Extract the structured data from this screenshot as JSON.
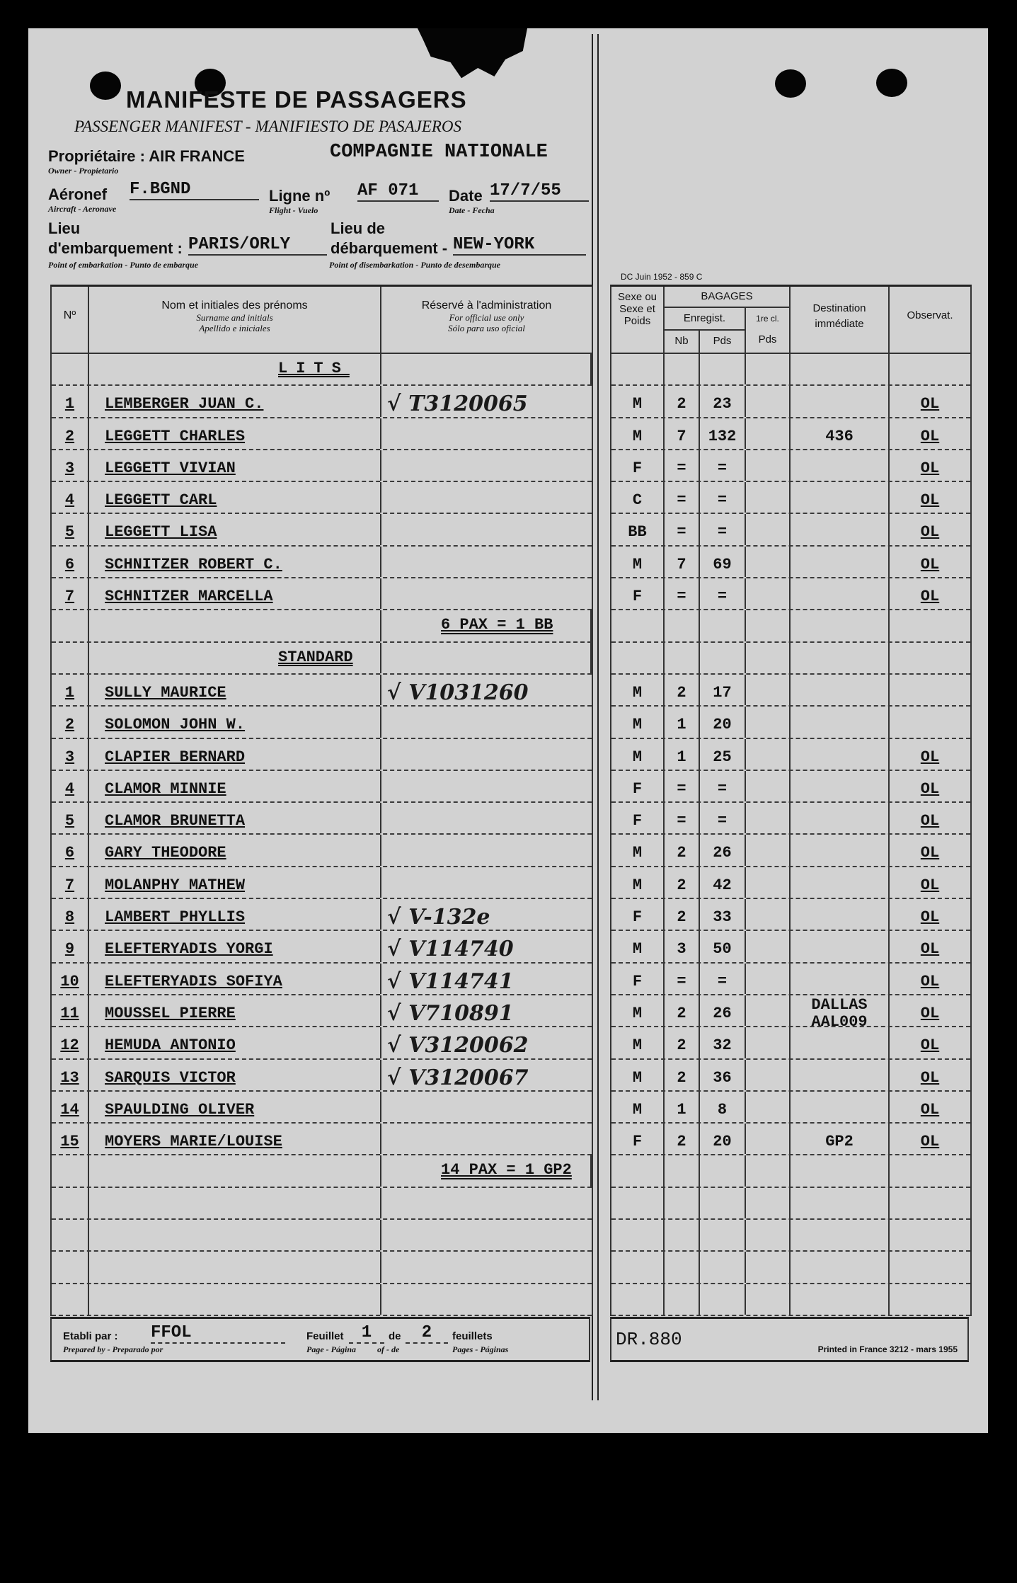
{
  "header": {
    "title": "MANIFESTE DE PASSAGERS",
    "subtitle": "PASSENGER MANIFEST - MANIFIESTO DE PASAJEROS",
    "owner_label": "Propriétaire : AIR FRANCE",
    "owner_sub": "Owner - Propietario",
    "owner_value": "COMPAGNIE NATIONALE",
    "aircraft_label": "Aéronef",
    "aircraft_sub": "Aircraft - Aeronave",
    "aircraft_value": "F.BGND",
    "flight_label": "Ligne nº",
    "flight_sub": "Flight - Vuelo",
    "flight_value": "AF 071",
    "date_label": "Date",
    "date_sub": "Date - Fecha",
    "date_value": "17/7/55",
    "embark_label_1": "Lieu",
    "embark_label_2": "d'embarquement :",
    "embark_sub": "Point of embarkation - Punto de embarque",
    "embark_value": "PARIS/ORLY",
    "disembark_label_1": "Lieu de",
    "disembark_label_2": "débarquement -",
    "disembark_sub": "Point of disembarkation - Punto de desembarque",
    "disembark_value": "NEW-YORK",
    "form_code": "DC Juin 1952 - 859 C"
  },
  "columns": {
    "no": "Nº",
    "name": "Nom et initiales des prénoms",
    "name_sub1": "Surname and initials",
    "name_sub2": "Apellido e iniciales",
    "admin": "Réservé à l'administration",
    "admin_sub1": "For official use only",
    "admin_sub2": "Sólo para uso oficial",
    "sex": "Sexe ou Sexe et Poids",
    "baggage": "BAGAGES",
    "registered": "Enregist.",
    "nb": "Nb",
    "pds": "Pds",
    "first_class": "1re cl.",
    "first_pds": "Pds",
    "destination": "Destination immédiate",
    "observations": "Observat."
  },
  "rows": [
    {
      "type": "section",
      "text": "LITS"
    },
    {
      "type": "pax",
      "no": "1",
      "name": "LEMBERGER JUAN C.",
      "hand": "√ T3120065",
      "sex": "M",
      "nb": "2",
      "pds": "23",
      "dest": "",
      "obs": "OL"
    },
    {
      "type": "pax",
      "no": "2",
      "name": "LEGGETT CHARLES",
      "hand": "",
      "sex": "M",
      "nb": "7",
      "pds": "132",
      "dest": "436",
      "obs": "OL"
    },
    {
      "type": "pax",
      "no": "3",
      "name": "LEGGETT VIVIAN",
      "hand": "",
      "sex": "F",
      "nb": "=",
      "pds": "=",
      "dest": "",
      "obs": "OL"
    },
    {
      "type": "pax",
      "no": "4",
      "name": "LEGGETT CARL",
      "hand": "",
      "sex": "C",
      "nb": "=",
      "pds": "=",
      "dest": "",
      "obs": "OL"
    },
    {
      "type": "pax",
      "no": "5",
      "name": "LEGGETT LISA",
      "hand": "",
      "sex": "BB",
      "nb": "=",
      "pds": "=",
      "dest": "",
      "obs": "OL"
    },
    {
      "type": "pax",
      "no": "6",
      "name": "SCHNITZER ROBERT C.",
      "hand": "",
      "sex": "M",
      "nb": "7",
      "pds": "69",
      "dest": "",
      "obs": "OL"
    },
    {
      "type": "pax",
      "no": "7",
      "name": "SCHNITZER MARCELLA",
      "hand": "",
      "sex": "F",
      "nb": "=",
      "pds": "=",
      "dest": "",
      "obs": "OL"
    },
    {
      "type": "summary",
      "text": "6 PAX = 1 BB"
    },
    {
      "type": "section",
      "text": "STANDARD"
    },
    {
      "type": "pax",
      "no": "1",
      "name": "SULLY MAURICE",
      "hand": "√ V1031260",
      "sex": "M",
      "nb": "2",
      "pds": "17",
      "dest": "",
      "obs": ""
    },
    {
      "type": "pax",
      "no": "2",
      "name": "SOLOMON JOHN W.",
      "hand": "",
      "sex": "M",
      "nb": "1",
      "pds": "20",
      "dest": "",
      "obs": ""
    },
    {
      "type": "pax",
      "no": "3",
      "name": "CLAPIER BERNARD",
      "hand": "",
      "sex": "M",
      "nb": "1",
      "pds": "25",
      "dest": "",
      "obs": "OL"
    },
    {
      "type": "pax",
      "no": "4",
      "name": "CLAMOR MINNIE",
      "hand": "",
      "sex": "F",
      "nb": "=",
      "pds": "=",
      "dest": "",
      "obs": "OL"
    },
    {
      "type": "pax",
      "no": "5",
      "name": "CLAMOR BRUNETTA",
      "hand": "",
      "sex": "F",
      "nb": "=",
      "pds": "=",
      "dest": "",
      "obs": "OL"
    },
    {
      "type": "pax",
      "no": "6",
      "name": "GARY THEODORE",
      "hand": "",
      "sex": "M",
      "nb": "2",
      "pds": "26",
      "dest": "",
      "obs": "OL"
    },
    {
      "type": "pax",
      "no": "7",
      "name": "MOLANPHY MATHEW",
      "hand": "",
      "sex": "M",
      "nb": "2",
      "pds": "42",
      "dest": "",
      "obs": "OL"
    },
    {
      "type": "pax",
      "no": "8",
      "name": "LAMBERT PHYLLIS",
      "hand": "√ V-132e",
      "sex": "F",
      "nb": "2",
      "pds": "33",
      "dest": "",
      "obs": "OL"
    },
    {
      "type": "pax",
      "no": "9",
      "name": "ELEFTERYADIS YORGI",
      "hand": "√ V114740",
      "sex": "M",
      "nb": "3",
      "pds": "50",
      "dest": "",
      "obs": "OL"
    },
    {
      "type": "pax",
      "no": "10",
      "name": "ELEFTERYADIS SOFIYA",
      "hand": "√ V114741",
      "sex": "F",
      "nb": "=",
      "pds": "=",
      "dest": "",
      "obs": "OL"
    },
    {
      "type": "pax",
      "no": "11",
      "name": "MOUSSEL PIERRE",
      "hand": "√ V710891",
      "sex": "M",
      "nb": "2",
      "pds": "26",
      "dest": "DALLAS AAL009",
      "obs": "OL"
    },
    {
      "type": "pax",
      "no": "12",
      "name": "HEMUDA ANTONIO",
      "hand": "√ V3120062",
      "sex": "M",
      "nb": "2",
      "pds": "32",
      "dest": "",
      "obs": "OL"
    },
    {
      "type": "pax",
      "no": "13",
      "name": "SARQUIS VICTOR",
      "hand": "√ V3120067",
      "sex": "M",
      "nb": "2",
      "pds": "36",
      "dest": "",
      "obs": "OL"
    },
    {
      "type": "pax",
      "no": "14",
      "name": "SPAULDING OLIVER",
      "hand": "",
      "sex": "M",
      "nb": "1",
      "pds": "8",
      "dest": "",
      "obs": "OL"
    },
    {
      "type": "pax",
      "no": "15",
      "name": "MOYERS MARIE/LOUISE",
      "hand": "",
      "sex": "F",
      "nb": "2",
      "pds": "20",
      "dest": "GP2",
      "obs": "OL"
    },
    {
      "type": "summary",
      "text": "14 PAX = 1 GP2"
    },
    {
      "type": "blank"
    },
    {
      "type": "blank"
    },
    {
      "type": "blank"
    },
    {
      "type": "blank"
    }
  ],
  "footer": {
    "prepared_label": "Etabli par :",
    "prepared_sub": "Prepared by - Preparado por",
    "prepared_value": "FFOL",
    "page_label": "Feuillet",
    "page_sub": "Page - Página",
    "page_value": "1",
    "of_label": "de",
    "of_sub": "of - de",
    "pages_value": "2",
    "pages_label": "feuillets",
    "pages_sub": "Pages - Páginas",
    "doc_ref": "DR.880",
    "printed": "Printed in France 3212 - mars 1955"
  }
}
